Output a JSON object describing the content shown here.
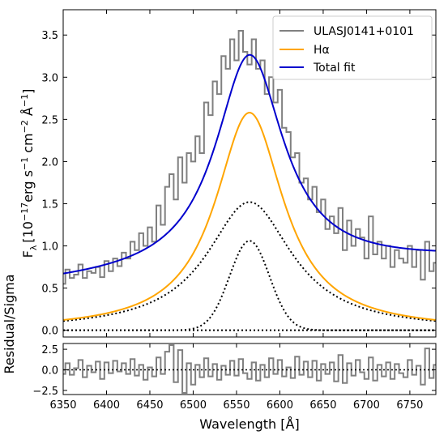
{
  "chart_data": [
    {
      "type": "line",
      "panel": "spectrum",
      "xlim": [
        6350,
        6780
      ],
      "ylim": [
        -0.08,
        3.8
      ],
      "ylabel": "F$_\\lambda$ [10$^{-17}$erg s$^{-1}$ cm$^{-2}$ Å$^{-1}$]",
      "ylabel_parts": {
        "symbol": "F",
        "sub": "λ",
        "open": "[10",
        "exp1": "−17",
        "unit1": "erg s",
        "exp2": "−1",
        "unit2": " cm",
        "exp3": "−2",
        "unit3": " Å",
        "exp4": "−1",
        "close": "]"
      },
      "yticks": [
        0.0,
        0.5,
        1.0,
        1.5,
        2.0,
        2.5,
        3.0,
        3.5
      ],
      "ytick_labels": [
        "0.0",
        "0.5",
        "1.0",
        "1.5",
        "2.0",
        "2.5",
        "3.0",
        "3.5"
      ],
      "legend_position": "top-right",
      "legend": [
        "ULASJ0141+0101",
        "Hα",
        "Total fit"
      ],
      "colors": {
        "data": "#808080",
        "halpha": "#ffa500",
        "total": "#0000cd",
        "components": "#000000"
      },
      "series": [
        {
          "name": "ULASJ0141+0101",
          "style": "step",
          "x": [
            6350,
            6355,
            6360,
            6365,
            6370,
            6375,
            6380,
            6385,
            6390,
            6395,
            6400,
            6405,
            6410,
            6415,
            6420,
            6425,
            6430,
            6435,
            6440,
            6445,
            6450,
            6455,
            6460,
            6465,
            6470,
            6475,
            6480,
            6485,
            6490,
            6495,
            6500,
            6505,
            6510,
            6515,
            6520,
            6525,
            6530,
            6535,
            6540,
            6545,
            6550,
            6555,
            6560,
            6565,
            6570,
            6575,
            6580,
            6585,
            6590,
            6595,
            6600,
            6605,
            6610,
            6615,
            6620,
            6625,
            6630,
            6635,
            6640,
            6645,
            6650,
            6655,
            6660,
            6665,
            6670,
            6675,
            6680,
            6685,
            6690,
            6695,
            6700,
            6705,
            6710,
            6715,
            6720,
            6725,
            6730,
            6735,
            6740,
            6745,
            6750,
            6755,
            6760,
            6765,
            6770,
            6775,
            6780
          ],
          "y": [
            0.55,
            0.72,
            0.62,
            0.66,
            0.78,
            0.62,
            0.7,
            0.68,
            0.75,
            0.63,
            0.82,
            0.7,
            0.85,
            0.76,
            0.92,
            0.85,
            1.05,
            0.95,
            1.15,
            1.0,
            1.22,
            1.05,
            1.48,
            1.25,
            1.7,
            1.85,
            1.55,
            2.05,
            1.75,
            2.1,
            2.0,
            2.3,
            2.1,
            2.7,
            2.55,
            2.95,
            2.8,
            3.25,
            3.1,
            3.45,
            3.2,
            3.55,
            3.3,
            3.15,
            3.45,
            3.1,
            3.2,
            2.8,
            3.0,
            2.7,
            2.85,
            2.4,
            2.35,
            2.05,
            2.1,
            1.75,
            1.8,
            1.55,
            1.7,
            1.4,
            1.55,
            1.2,
            1.35,
            1.15,
            1.45,
            0.95,
            1.3,
            1.0,
            1.2,
            1.1,
            0.85,
            1.35,
            0.9,
            1.05,
            0.85,
            1.0,
            0.75,
            0.95,
            0.85,
            0.8,
            1.0,
            0.75,
            0.95,
            0.6,
            1.05,
            0.7,
            0.8
          ]
        },
        {
          "name": "Hα",
          "style": "line",
          "model": {
            "type": "lorentzian",
            "center": 6565,
            "amplitude": 2.58,
            "fwhm": 96
          }
        },
        {
          "name": "Total fit",
          "style": "line",
          "model": {
            "type": "lorentzian_plus_continuum",
            "center": 6565,
            "amplitude": 2.58,
            "fwhm": 96,
            "continuum": [
              0.55,
              0.82
            ]
          }
        },
        {
          "style": "dotted",
          "model": {
            "type": "lorentzian",
            "center": 6565,
            "amplitude": 1.52,
            "fwhm": 120
          }
        },
        {
          "style": "dotted",
          "model": {
            "type": "gaussian",
            "center": 6565,
            "amplitude": 1.06,
            "sigma": 23
          }
        },
        {
          "style": "dotted",
          "model": {
            "type": "constant",
            "value": 0.0
          }
        }
      ]
    },
    {
      "type": "line",
      "panel": "residuals",
      "xlim": [
        6350,
        6780
      ],
      "ylim": [
        -3.0,
        3.2
      ],
      "xlabel": "Wavelength [Å]",
      "ylabel": "Residual/Sigma",
      "yticks": [
        -2.5,
        0.0,
        2.5
      ],
      "ytick_labels": [
        "−2.5",
        "0.0",
        "2.5"
      ],
      "xticks": [
        6350,
        6400,
        6450,
        6500,
        6550,
        6600,
        6650,
        6700,
        6750
      ],
      "xtick_labels": [
        "6350",
        "6400",
        "6450",
        "6500",
        "6550",
        "6600",
        "6650",
        "6700",
        "6750"
      ],
      "zero_line": 0.0,
      "series": [
        {
          "style": "step",
          "x": [
            6350,
            6355,
            6360,
            6365,
            6370,
            6375,
            6380,
            6385,
            6390,
            6395,
            6400,
            6405,
            6410,
            6415,
            6420,
            6425,
            6430,
            6435,
            6440,
            6445,
            6450,
            6455,
            6460,
            6465,
            6470,
            6475,
            6480,
            6485,
            6490,
            6495,
            6500,
            6505,
            6510,
            6515,
            6520,
            6525,
            6530,
            6535,
            6540,
            6545,
            6550,
            6555,
            6560,
            6565,
            6570,
            6575,
            6580,
            6585,
            6590,
            6595,
            6600,
            6605,
            6610,
            6615,
            6620,
            6625,
            6630,
            6635,
            6640,
            6645,
            6650,
            6655,
            6660,
            6665,
            6670,
            6675,
            6680,
            6685,
            6690,
            6695,
            6700,
            6705,
            6710,
            6715,
            6720,
            6725,
            6730,
            6735,
            6740,
            6745,
            6750,
            6755,
            6760,
            6765,
            6770,
            6775,
            6780
          ],
          "y": [
            -0.5,
            0.8,
            -0.6,
            0.2,
            1.2,
            -0.9,
            0.5,
            -0.3,
            1.0,
            -1.1,
            0.9,
            -0.4,
            1.1,
            -0.2,
            0.8,
            -0.5,
            1.3,
            -0.7,
            0.6,
            -1.2,
            0.3,
            -0.8,
            1.5,
            -0.5,
            2.2,
            3.0,
            -1.5,
            2.4,
            -2.8,
            0.8,
            -1.8,
            0.6,
            -0.9,
            1.4,
            -0.8,
            0.7,
            -1.2,
            0.5,
            -0.6,
            1.1,
            -0.7,
            1.3,
            -0.4,
            -1.1,
            0.9,
            -1.3,
            0.6,
            -0.9,
            1.4,
            -0.5,
            1.2,
            -0.8,
            0.3,
            -1.0,
            1.6,
            -0.6,
            1.0,
            -0.9,
            1.1,
            -1.3,
            0.7,
            -0.5,
            0.9,
            -1.4,
            1.8,
            -1.6,
            0.8,
            -0.7,
            1.2,
            -0.3,
            -1.1,
            1.5,
            -1.3,
            0.6,
            -0.8,
            0.9,
            -1.1,
            0.7,
            -0.4,
            -0.9,
            1.2,
            -0.6,
            0.5,
            -1.8,
            2.6,
            -1.0,
            0.6
          ]
        }
      ]
    }
  ]
}
